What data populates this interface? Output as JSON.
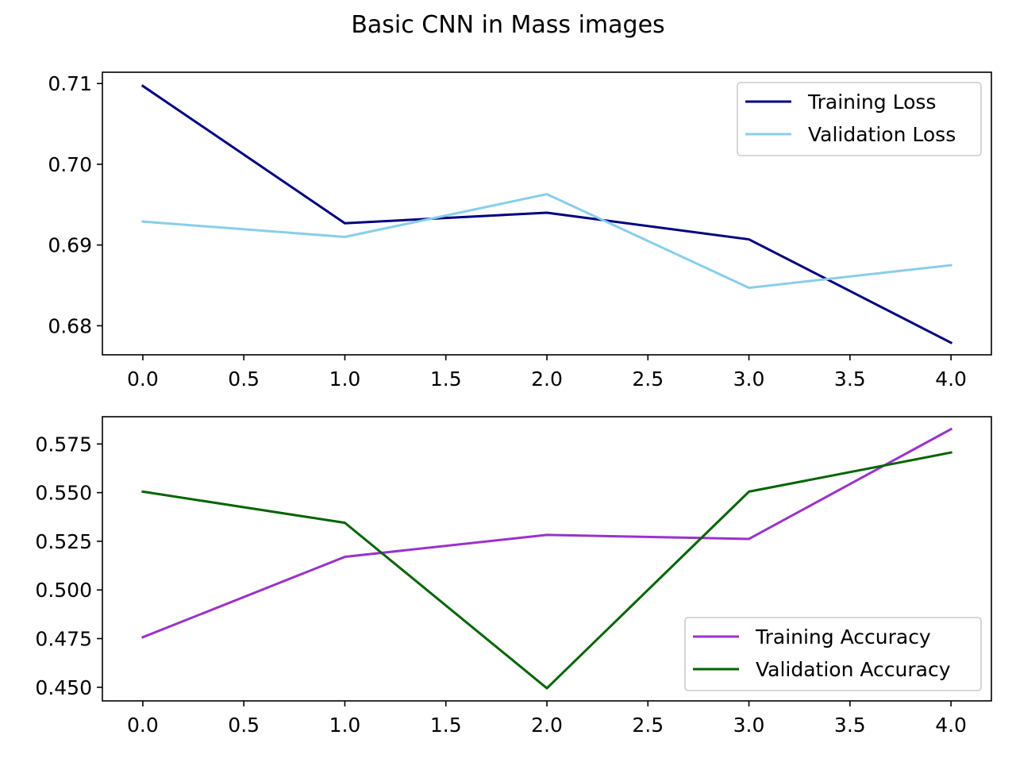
{
  "figure": {
    "title": "Basic CNN in Mass images"
  },
  "chart_data": [
    {
      "type": "line",
      "title": "",
      "xlabel": "",
      "ylabel": "",
      "x": [
        0,
        1,
        2,
        3,
        4
      ],
      "xlim": [
        -0.2,
        4.2
      ],
      "ylim": [
        0.6764,
        0.7114
      ],
      "xticks": [
        0.0,
        0.5,
        1.0,
        1.5,
        2.0,
        2.5,
        3.0,
        3.5,
        4.0
      ],
      "xtick_labels": [
        "0.0",
        "0.5",
        "1.0",
        "1.5",
        "2.0",
        "2.5",
        "3.0",
        "3.5",
        "4.0"
      ],
      "yticks": [
        0.68,
        0.69,
        0.7,
        0.71
      ],
      "ytick_labels": [
        "0.68",
        "0.69",
        "0.70",
        "0.71"
      ],
      "grid": false,
      "legend_position": "upper right",
      "series": [
        {
          "name": "Training Loss",
          "color": "#000080",
          "values": [
            0.7097,
            0.6927,
            0.694,
            0.6907,
            0.6779
          ]
        },
        {
          "name": "Validation Loss",
          "color": "#87CEEB",
          "values": [
            0.6929,
            0.691,
            0.6963,
            0.6847,
            0.6875
          ]
        }
      ]
    },
    {
      "type": "line",
      "title": "",
      "xlabel": "",
      "ylabel": "",
      "x": [
        0,
        1,
        2,
        3,
        4
      ],
      "xlim": [
        -0.2,
        4.2
      ],
      "ylim": [
        0.443,
        0.589
      ],
      "xticks": [
        0.0,
        0.5,
        1.0,
        1.5,
        2.0,
        2.5,
        3.0,
        3.5,
        4.0
      ],
      "xtick_labels": [
        "0.0",
        "0.5",
        "1.0",
        "1.5",
        "2.0",
        "2.5",
        "3.0",
        "3.5",
        "4.0"
      ],
      "yticks": [
        0.45,
        0.475,
        0.5,
        0.525,
        0.55,
        0.575
      ],
      "ytick_labels": [
        "0.450",
        "0.475",
        "0.500",
        "0.525",
        "0.550",
        "0.575"
      ],
      "grid": false,
      "legend_position": "lower right",
      "series": [
        {
          "name": "Training Accuracy",
          "color": "#9932CC",
          "values": [
            0.4757,
            0.517,
            0.5283,
            0.5262,
            0.5826
          ]
        },
        {
          "name": "Validation Accuracy",
          "color": "#006400",
          "values": [
            0.5505,
            0.5345,
            0.4495,
            0.5505,
            0.5706
          ]
        }
      ]
    }
  ]
}
